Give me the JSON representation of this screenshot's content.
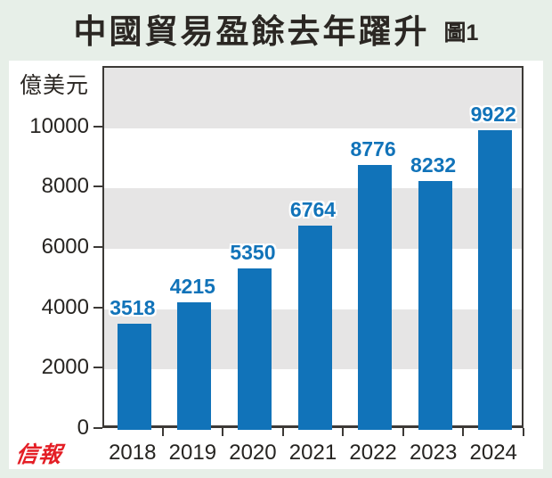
{
  "header": {
    "title": "中國貿易盈餘去年躍升",
    "figure_label": "圖1"
  },
  "branding": {
    "logo_text": "信報",
    "logo_color": "#e41e25"
  },
  "chart_data": {
    "type": "bar",
    "title": "中國貿易盈餘去年躍升",
    "figure_label": "圖1",
    "unit_label": "億美元",
    "categories": [
      "2018",
      "2019",
      "2020",
      "2021",
      "2022",
      "2023",
      "2024"
    ],
    "values": [
      3518,
      4215,
      5350,
      6764,
      8776,
      8232,
      9922
    ],
    "value_labels": [
      "3518",
      "4215",
      "5350",
      "6764",
      "8776",
      "8232",
      "9922"
    ],
    "xlabel": "",
    "ylabel": "億美元",
    "ylim": [
      0,
      12000
    ],
    "yticks": [
      0,
      2000,
      4000,
      6000,
      8000,
      10000
    ],
    "ytick_labels": [
      "0",
      "2000",
      "4000",
      "6000",
      "8000",
      "10000"
    ],
    "gray_bands": [
      [
        2000,
        4000
      ],
      [
        6000,
        8000
      ],
      [
        10000,
        12000
      ]
    ],
    "grid": false,
    "legend": false,
    "bar_color": "#1173b9",
    "value_label_color": "#1173b9",
    "band_color": "#e6e5e5",
    "axis_color": "#3c3936"
  }
}
